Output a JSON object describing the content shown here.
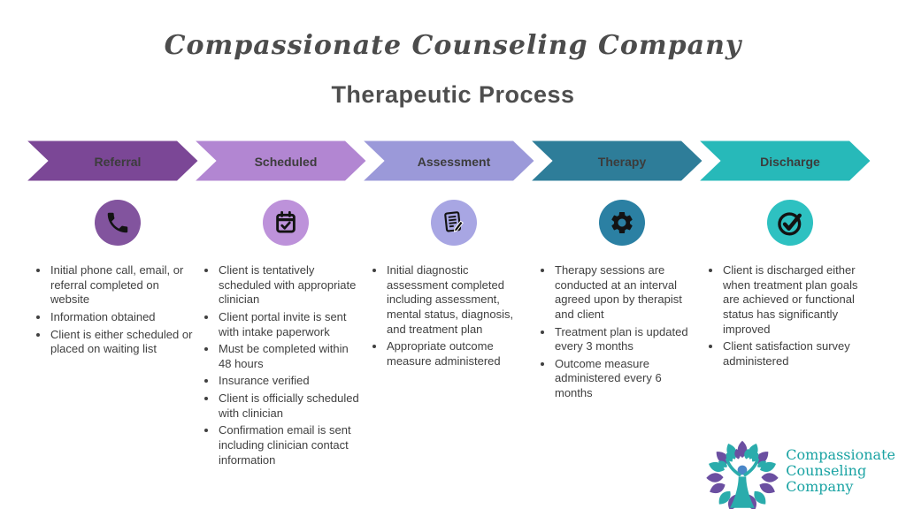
{
  "header": {
    "company_script_title": "Compassionate Counseling Company",
    "page_title": "Therapeutic Process"
  },
  "stages": [
    {
      "label": "Referral",
      "arrow_color": "#7b4796",
      "icon": "phone-icon",
      "icon_bg": "#82549e",
      "bullets": [
        "Initial phone call, email, or referral completed on website",
        "Information obtained",
        "Client is either scheduled or placed on waiting list"
      ]
    },
    {
      "label": "Scheduled",
      "arrow_color": "#b286d2",
      "icon": "calendar-check-icon",
      "icon_bg": "#bd92da",
      "bullets": [
        "Client is tentatively scheduled with appropriate clinician",
        "Client portal invite is sent with intake paperwork",
        "Must be completed within 48 hours",
        "Insurance verified",
        "Client is officially scheduled with clinician",
        "Confirmation email is sent including clinician contact information"
      ]
    },
    {
      "label": "Assessment",
      "arrow_color": "#9b99d9",
      "icon": "assessment-note-icon",
      "icon_bg": "#a8a6e3",
      "bullets": [
        "Initial diagnostic assessment completed including assessment, mental status, diagnosis, and treatment plan",
        "Appropriate outcome measure administered"
      ]
    },
    {
      "label": "Therapy",
      "arrow_color": "#2e7d99",
      "icon": "gear-icon",
      "icon_bg": "#2b80a3",
      "bullets": [
        "Therapy sessions are conducted at an interval agreed upon by therapist and client",
        "Treatment plan is updated every 3 months",
        "Outcome measure administered every 6 months"
      ]
    },
    {
      "label": "Discharge",
      "arrow_color": "#27b9b9",
      "icon": "check-circle-icon",
      "icon_bg": "#2ec1c1",
      "bullets": [
        "Client is discharged either when treatment plan goals are achieved or functional status has significantly improved",
        "Client satisfaction survey administered"
      ]
    }
  ],
  "logo": {
    "name": "Compassionate Counseling Company",
    "lines": [
      "Compassionate",
      "Counseling",
      "Company"
    ],
    "text_color": "#1aa3a3",
    "leaf_purple": "#6b4fa1",
    "leaf_teal": "#2aacac",
    "head_blue": "#4a86c8",
    "tree_icon": "tree-person-logo-icon"
  }
}
